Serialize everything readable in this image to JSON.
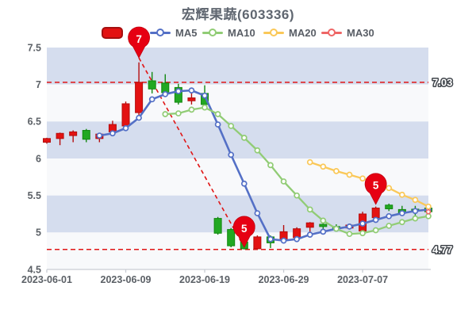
{
  "title": "宏辉果蔬(603336)",
  "legend": {
    "items": [
      {
        "label": "",
        "type": "kline",
        "color": "#e31212"
      },
      {
        "label": "MA5",
        "type": "line",
        "color": "#5470c6"
      },
      {
        "label": "MA10",
        "type": "line",
        "color": "#91cc75"
      },
      {
        "label": "MA20",
        "type": "line",
        "color": "#fac858"
      },
      {
        "label": "MA30",
        "type": "line",
        "color": "#ee6666"
      }
    ]
  },
  "y_axis": {
    "ticks": [
      "7.5",
      "7",
      "6.5",
      "6",
      "5.5",
      "5",
      "4.5"
    ]
  },
  "x_axis": {
    "ticks": [
      {
        "label": "2023-06-01",
        "index": 0
      },
      {
        "label": "2023-06-09",
        "index": 6
      },
      {
        "label": "2023-06-19",
        "index": 12
      },
      {
        "label": "2023-06-29",
        "index": 18
      },
      {
        "label": "2023-07-07",
        "index": 24
      }
    ]
  },
  "annotations": {
    "pins": [
      {
        "label": "7",
        "index": 7,
        "value": 7.36
      },
      {
        "label": "5",
        "index": 15,
        "value": 4.8
      },
      {
        "label": "5",
        "index": 25,
        "value": 5.38
      }
    ],
    "marklines": [
      {
        "label": "7.03",
        "value": 7.03
      },
      {
        "label": "4.77",
        "value": 4.77
      }
    ],
    "trendline": {
      "from": {
        "index": 7,
        "value": 7.36
      },
      "to": {
        "index": 15,
        "value": 4.8
      }
    }
  },
  "colors": {
    "up": "#e31212",
    "up_border": "#b50d0d",
    "down": "#22a822",
    "down_border": "#12880f",
    "ma5": "#5470c6",
    "ma10": "#91cc75",
    "ma20": "#fac858",
    "ma30": "#ee6666",
    "band_blue": "#d5ddee",
    "band_light": "#f8f9fb",
    "markline": "#e01515",
    "pin": "#e60012",
    "axis_text": "#5b6066",
    "axis_line": "#c9cdd4",
    "markline_label_fill": "#ffffff",
    "markline_label_stroke": "#41464c"
  },
  "chart_data": {
    "type": "candlestick",
    "title": "宏辉果蔬(603336)",
    "ylim": [
      4.5,
      7.5
    ],
    "grid": "alternating-bands",
    "legend_position": "top",
    "dates": [
      "2023-06-01",
      "2023-06-02",
      "2023-06-05",
      "2023-06-06",
      "2023-06-07",
      "2023-06-08",
      "2023-06-09",
      "2023-06-12",
      "2023-06-13",
      "2023-06-14",
      "2023-06-15",
      "2023-06-16",
      "2023-06-19",
      "2023-06-20",
      "2023-06-21",
      "2023-06-26",
      "2023-06-27",
      "2023-06-28",
      "2023-06-29",
      "2023-06-30",
      "2023-07-03",
      "2023-07-04",
      "2023-07-05",
      "2023-07-06",
      "2023-07-07",
      "2023-07-10",
      "2023-07-11",
      "2023-07-12",
      "2023-07-13",
      "2023-07-14"
    ],
    "candles_format": [
      "open",
      "close",
      "low",
      "high"
    ],
    "candles": [
      [
        6.22,
        6.27,
        6.2,
        6.28
      ],
      [
        6.27,
        6.34,
        6.18,
        6.35
      ],
      [
        6.31,
        6.36,
        6.22,
        6.38
      ],
      [
        6.38,
        6.26,
        6.22,
        6.4
      ],
      [
        6.27,
        6.33,
        6.22,
        6.34
      ],
      [
        6.36,
        6.46,
        6.34,
        6.51
      ],
      [
        6.44,
        6.74,
        6.42,
        6.77
      ],
      [
        6.62,
        7.03,
        6.58,
        7.3
      ],
      [
        7.05,
        6.94,
        6.88,
        7.17
      ],
      [
        7.02,
        6.89,
        6.86,
        7.14
      ],
      [
        6.96,
        6.76,
        6.73,
        7.01
      ],
      [
        6.78,
        6.82,
        6.73,
        6.94
      ],
      [
        6.88,
        6.73,
        6.7,
        6.99
      ],
      [
        5.19,
        4.99,
        4.97,
        5.21
      ],
      [
        5.04,
        4.82,
        4.8,
        5.06
      ],
      [
        4.87,
        4.78,
        4.77,
        4.9
      ],
      [
        4.78,
        4.94,
        4.77,
        4.96
      ],
      [
        4.94,
        4.86,
        4.79,
        4.96
      ],
      [
        4.9,
        5.01,
        4.88,
        5.1
      ],
      [
        4.93,
        5.05,
        4.91,
        5.07
      ],
      [
        5.07,
        5.13,
        4.98,
        5.14
      ],
      [
        5.11,
        5.08,
        5.0,
        5.19
      ],
      [
        5.08,
        5.06,
        5.03,
        5.11
      ],
      [
        5.06,
        5.1,
        5.04,
        5.12
      ],
      [
        5.02,
        5.25,
        5.0,
        5.28
      ],
      [
        5.2,
        5.33,
        5.18,
        5.35
      ],
      [
        5.37,
        5.32,
        5.29,
        5.39
      ],
      [
        5.31,
        5.26,
        5.24,
        5.36
      ],
      [
        5.315,
        5.305,
        5.23,
        5.36
      ],
      [
        5.33,
        5.28,
        5.26,
        5.35
      ]
    ],
    "series": [
      {
        "name": "MA5",
        "start": 4,
        "values": [
          6.31,
          6.34,
          6.41,
          6.55,
          6.8,
          6.87,
          6.91,
          6.92,
          6.85,
          6.46,
          6.05,
          5.66,
          5.26,
          4.91,
          4.89,
          4.91,
          4.97,
          5.01,
          5.05,
          5.08,
          5.12,
          5.17,
          5.22,
          5.26,
          5.29,
          5.31
        ]
      },
      {
        "name": "MA10",
        "start": 9,
        "values": [
          6.6,
          6.61,
          6.66,
          6.69,
          6.6,
          6.44,
          6.28,
          6.11,
          5.91,
          5.69,
          5.5,
          5.31,
          5.16,
          5.05,
          4.98,
          4.99,
          5.03,
          5.09,
          5.14,
          5.19,
          5.22
        ]
      },
      {
        "name": "MA20",
        "start": 20,
        "values": [
          5.95,
          5.89,
          5.83,
          5.78,
          5.73,
          5.68,
          5.6,
          5.51,
          5.44,
          5.35
        ]
      },
      {
        "name": "MA30",
        "start": 29,
        "values": [
          5.28
        ]
      }
    ]
  }
}
